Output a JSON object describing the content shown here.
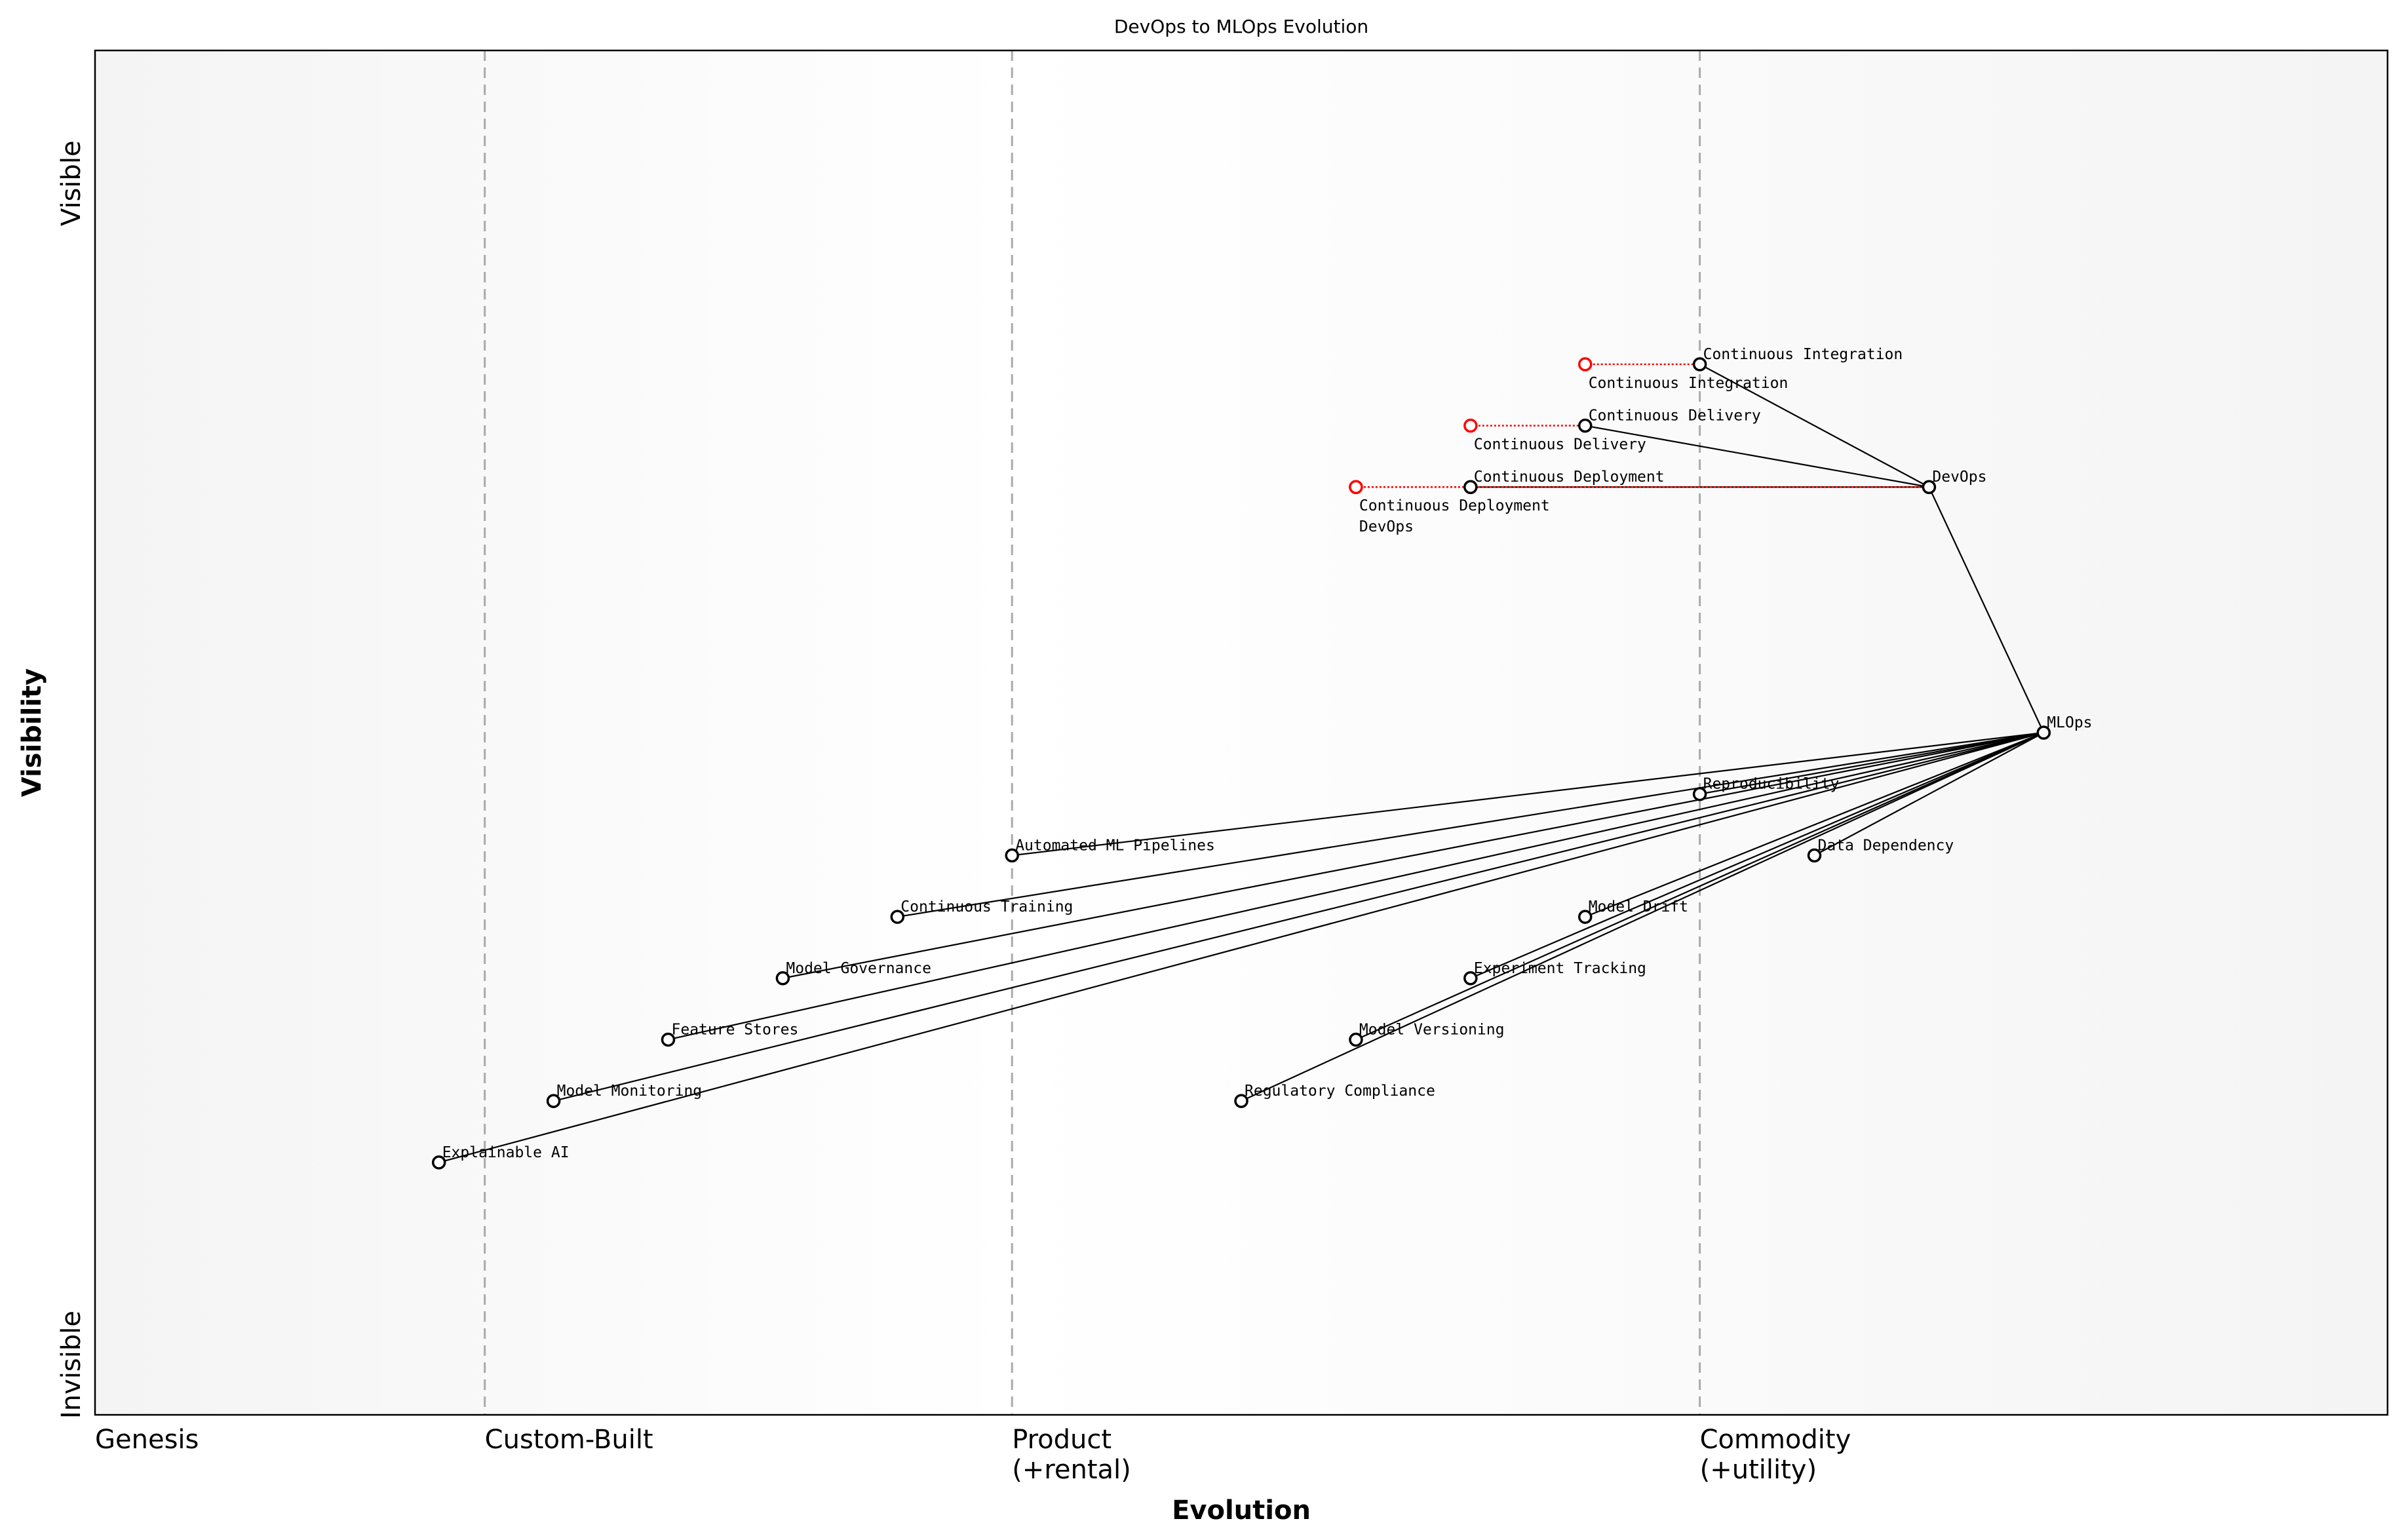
{
  "title": "DevOps to MLOps Evolution",
  "x_axis": {
    "label": "Evolution",
    "stages": [
      {
        "lines": [
          "Genesis"
        ],
        "at": 0.0
      },
      {
        "lines": [
          "Custom-Built"
        ],
        "at": 0.17
      },
      {
        "lines": [
          "Product",
          "(+rental)"
        ],
        "at": 0.4
      },
      {
        "lines": [
          "Commodity",
          "(+utility)"
        ],
        "at": 0.7
      }
    ]
  },
  "y_axis": {
    "label": "Visibility",
    "top": "Visible",
    "bottom": "Invisible"
  },
  "colors": {
    "node": "#000000",
    "evolve": "#ff0000",
    "divider": "#aaaaaa",
    "band": "#f4f4f4"
  },
  "components": [
    {
      "name": "DevOps",
      "evolution": 0.8,
      "visibility": 0.68
    },
    {
      "name": "Continuous Integration",
      "evolution": 0.7,
      "visibility": 0.77
    },
    {
      "name": "Continuous Delivery",
      "evolution": 0.65,
      "visibility": 0.725
    },
    {
      "name": "Continuous Deployment",
      "evolution": 0.6,
      "visibility": 0.68
    },
    {
      "name": "MLOps",
      "evolution": 0.85,
      "visibility": 0.5
    },
    {
      "name": "Reproducibility",
      "evolution": 0.7,
      "visibility": 0.455
    },
    {
      "name": "Automated ML Pipelines",
      "evolution": 0.4,
      "visibility": 0.41
    },
    {
      "name": "Data Dependency",
      "evolution": 0.75,
      "visibility": 0.41
    },
    {
      "name": "Continuous Training",
      "evolution": 0.35,
      "visibility": 0.365
    },
    {
      "name": "Model Drift",
      "evolution": 0.65,
      "visibility": 0.365
    },
    {
      "name": "Model Governance",
      "evolution": 0.3,
      "visibility": 0.32
    },
    {
      "name": "Experiment Tracking",
      "evolution": 0.6,
      "visibility": 0.32
    },
    {
      "name": "Feature Stores",
      "evolution": 0.25,
      "visibility": 0.275
    },
    {
      "name": "Model Versioning",
      "evolution": 0.55,
      "visibility": 0.275
    },
    {
      "name": "Model Monitoring",
      "evolution": 0.2,
      "visibility": 0.23
    },
    {
      "name": "Regulatory Compliance",
      "evolution": 0.5,
      "visibility": 0.23
    },
    {
      "name": "Explainable AI",
      "evolution": 0.15,
      "visibility": 0.185
    }
  ],
  "links": [
    [
      "Continuous Integration",
      "DevOps"
    ],
    [
      "Continuous Delivery",
      "DevOps"
    ],
    [
      "Continuous Deployment",
      "DevOps"
    ],
    [
      "DevOps",
      "MLOps"
    ],
    [
      "MLOps",
      "Reproducibility"
    ],
    [
      "MLOps",
      "Automated ML Pipelines"
    ],
    [
      "MLOps",
      "Data Dependency"
    ],
    [
      "MLOps",
      "Continuous Training"
    ],
    [
      "MLOps",
      "Model Drift"
    ],
    [
      "MLOps",
      "Model Governance"
    ],
    [
      "MLOps",
      "Experiment Tracking"
    ],
    [
      "MLOps",
      "Feature Stores"
    ],
    [
      "MLOps",
      "Model Versioning"
    ],
    [
      "MLOps",
      "Model Monitoring"
    ],
    [
      "MLOps",
      "Regulatory Compliance"
    ],
    [
      "MLOps",
      "Explainable AI"
    ]
  ],
  "evolve": [
    {
      "name": "Continuous Integration",
      "evolution": 0.65
    },
    {
      "name": "Continuous Delivery",
      "evolution": 0.6
    },
    {
      "name": "Continuous Deployment",
      "evolution": 0.55
    },
    {
      "name": "DevOps",
      "evolution": 0.55
    }
  ]
}
